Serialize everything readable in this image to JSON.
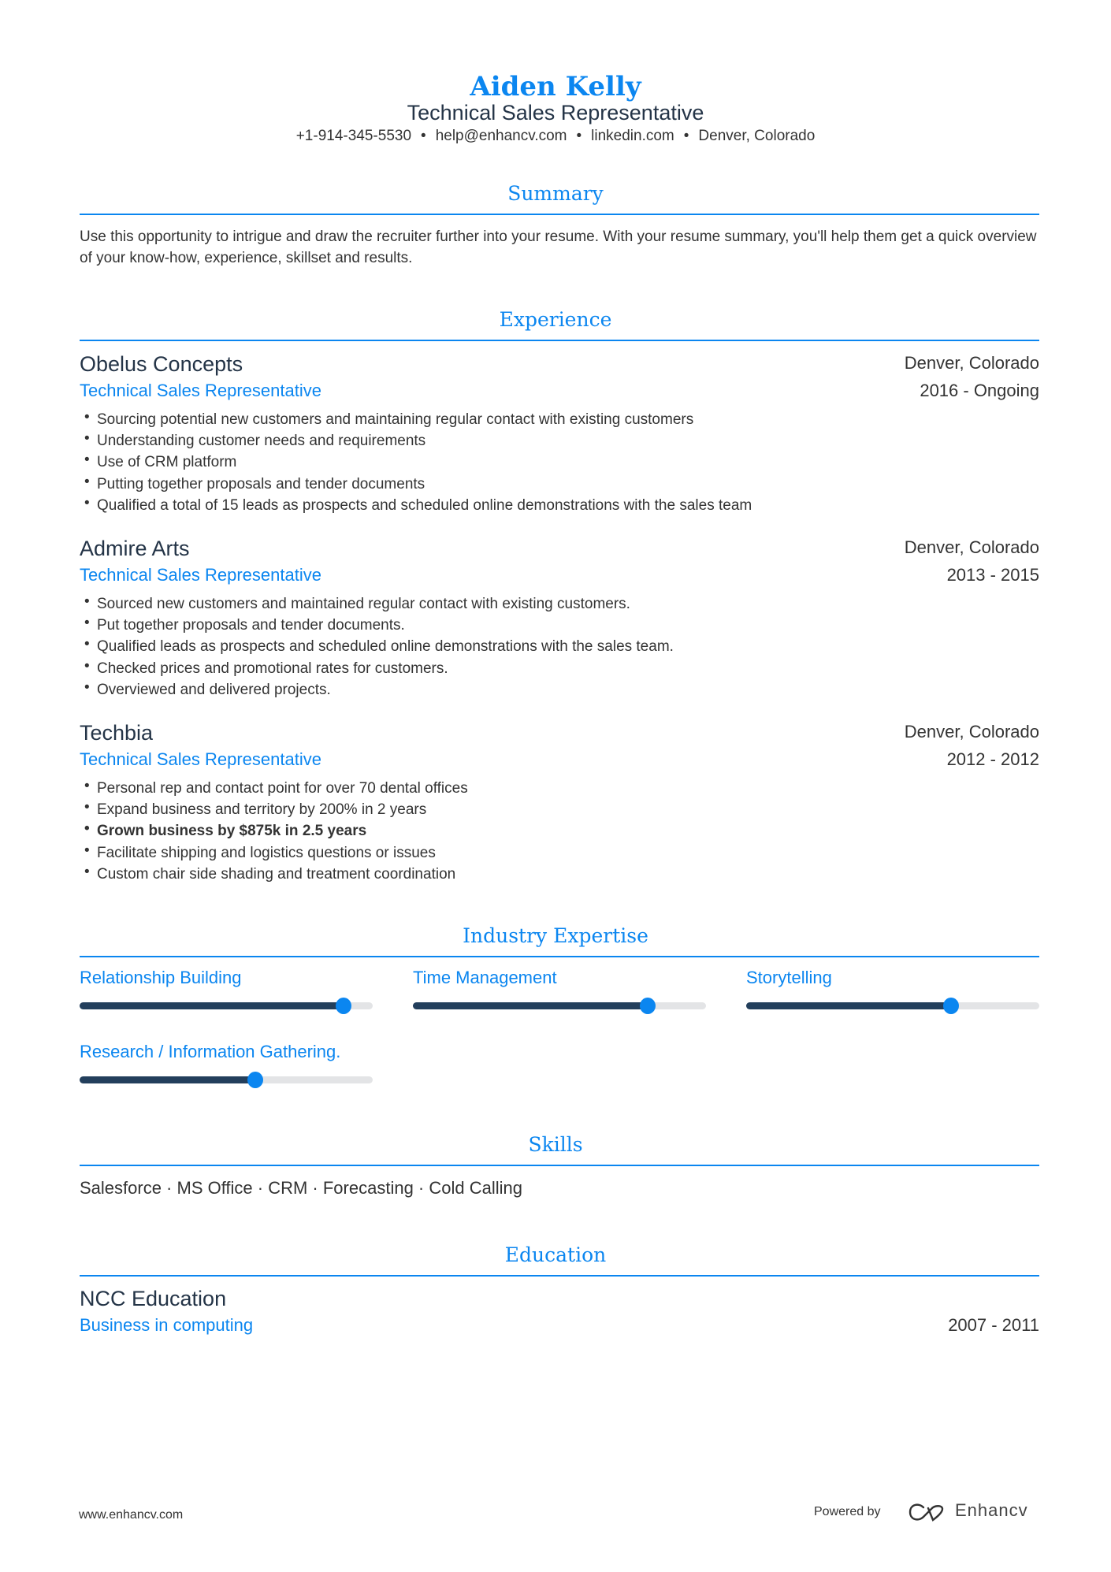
{
  "header": {
    "name": "Aiden Kelly",
    "title": "Technical Sales Representative",
    "contacts": [
      "+1-914-345-5530",
      "help@enhancv.com",
      "linkedin.com",
      "Denver, Colorado"
    ]
  },
  "summary": {
    "heading": "Summary",
    "text": "Use this opportunity to intrigue and draw the recruiter further into your resume. With your resume summary, you'll help them get a quick overview of your know-how, experience, skillset and results."
  },
  "experience": {
    "heading": "Experience",
    "jobs": [
      {
        "company": "Obelus Concepts",
        "role": "Technical Sales Representative",
        "location": "Denver, Colorado",
        "dates": "2016 - Ongoing",
        "bullets": [
          "Sourcing potential new customers and maintaining regular contact with existing customers",
          "Understanding customer needs and requirements",
          "Use of CRM platform",
          "Putting together proposals and tender documents",
          "Qualified a total of 15 leads as prospects and scheduled online demonstrations with the sales team"
        ]
      },
      {
        "company": "Admire Arts",
        "role": "Technical Sales Representative",
        "location": "Denver, Colorado",
        "dates": "2013 - 2015",
        "bullets": [
          "Sourced new customers and maintained regular contact with existing customers.",
          "Put together proposals and tender documents.",
          "Qualified leads as prospects and scheduled online demonstrations with the sales team.",
          "Checked prices and promotional rates for customers.",
          "Overviewed and delivered projects."
        ]
      },
      {
        "company": "Techbia",
        "role": "Technical Sales Representative",
        "location": "Denver, Colorado",
        "dates": "2012 - 2012",
        "bullets": [
          "Personal rep and contact point for over 70 dental offices",
          "Expand business and territory by 200% in 2 years",
          "Grown business by $875k in 2.5 years",
          "Facilitate shipping and logistics questions or issues",
          "Custom chair side shading and treatment coordination"
        ]
      }
    ]
  },
  "expertise": {
    "heading": "Industry Expertise",
    "items": [
      {
        "label": "Relationship Building",
        "level": 0.9
      },
      {
        "label": "Time Management",
        "level": 0.8
      },
      {
        "label": "Storytelling",
        "level": 0.7
      },
      {
        "label": "Research / Information Gathering.",
        "level": 0.6
      }
    ]
  },
  "skills": {
    "heading": "Skills",
    "text": "Salesforce · MS Office · CRM · Forecasting · Cold Calling"
  },
  "education": {
    "heading": "Education",
    "school": "NCC Education",
    "degree": "Business in computing",
    "dates": "2007 - 2011"
  },
  "footer": {
    "website": "www.enhancv.com",
    "powered_by": "Powered by",
    "brand": "Enhancv"
  },
  "colors": {
    "accent": "#0b86f0",
    "bar_fill": "#233f5c",
    "bar_track": "#e3e4e6"
  }
}
